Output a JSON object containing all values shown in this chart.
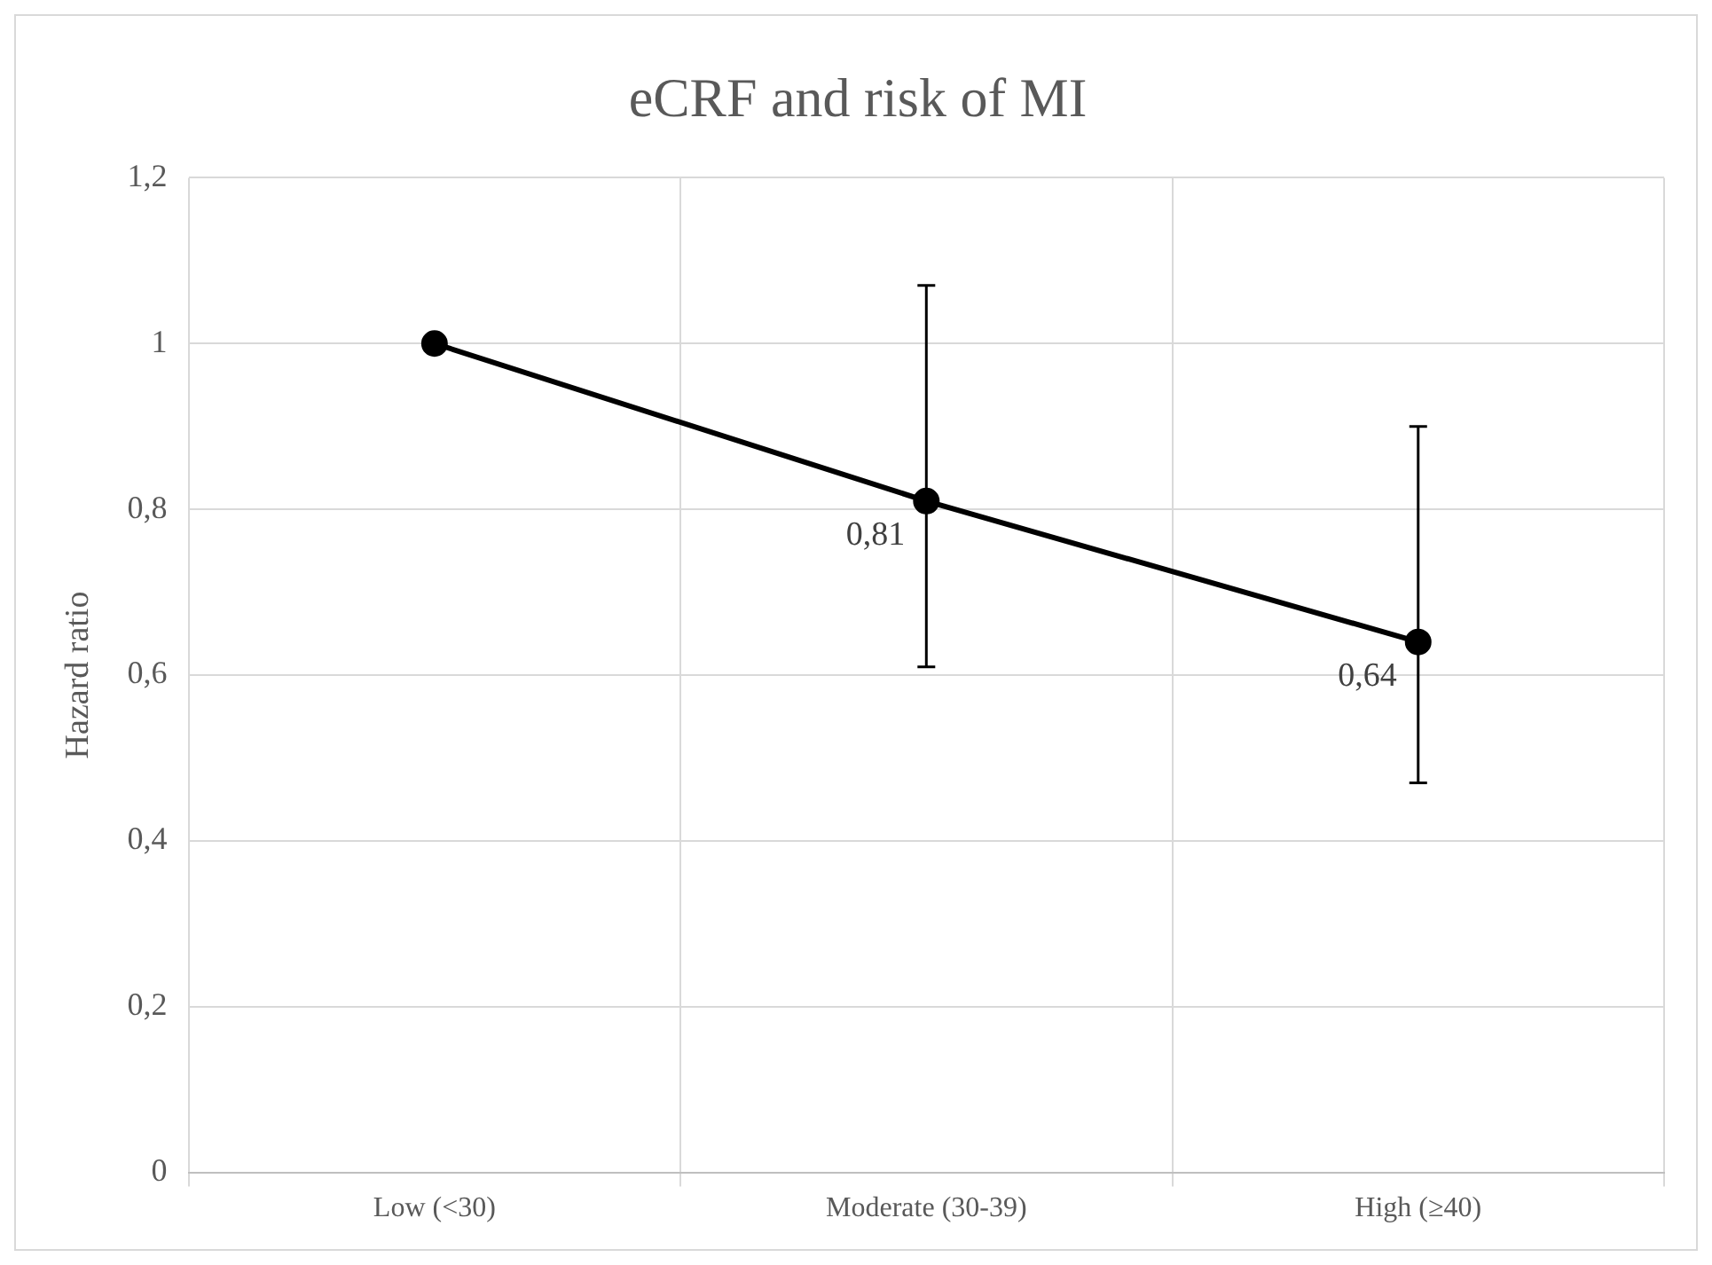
{
  "chart_data": {
    "type": "line",
    "title": "eCRF and risk of MI",
    "ylabel": "Hazard ratio",
    "categories": [
      "Low (<30)",
      "Moderate (30-39)",
      "High (≥40)"
    ],
    "series": [
      {
        "color": "#000000",
        "values": [
          1,
          0.81,
          0.64
        ],
        "errors": [
          null,
          [
            0.61,
            1.07
          ],
          [
            0.47,
            0.9
          ]
        ],
        "value_labels": [
          null,
          "0,81",
          "0,64"
        ]
      }
    ],
    "ylim": [
      0,
      1.2
    ],
    "yticks": [
      {
        "value": 0,
        "label": "0"
      },
      {
        "value": 0.2,
        "label": "0,2"
      },
      {
        "value": 0.4,
        "label": "0,4"
      },
      {
        "value": 0.6,
        "label": "0,6"
      },
      {
        "value": 0.8,
        "label": "0,8"
      },
      {
        "value": 1,
        "label": "1"
      },
      {
        "value": 1.2,
        "label": "1,2"
      }
    ],
    "grid": true,
    "legend": false,
    "marker": "circle",
    "line_style": "solid"
  }
}
